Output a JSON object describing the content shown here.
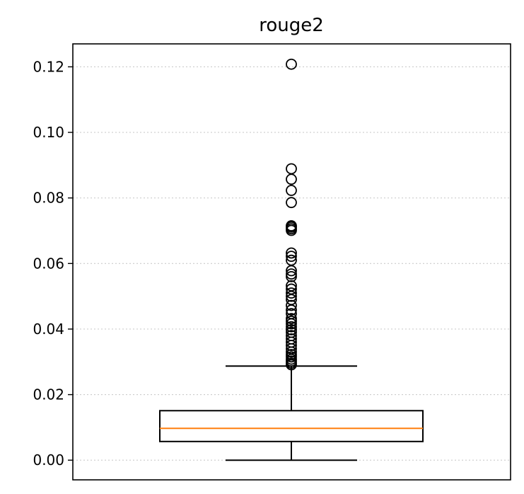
{
  "chart_data": {
    "type": "box",
    "title": "rouge2",
    "xlabel": "",
    "ylabel": "",
    "ylim": [
      -0.006,
      0.127
    ],
    "yticks": [
      0.0,
      0.02,
      0.04,
      0.06,
      0.08,
      0.1,
      0.12
    ],
    "ytick_labels": [
      "0.00",
      "0.02",
      "0.04",
      "0.06",
      "0.08",
      "0.10",
      "0.12"
    ],
    "grid": "y, dotted",
    "series": [
      {
        "whisker_low": 0.0,
        "q1": 0.0057,
        "median": 0.0097,
        "q3": 0.0151,
        "whisker_high": 0.0287,
        "outliers": [
          0.1208,
          0.0889,
          0.0857,
          0.0823,
          0.0786,
          0.0715,
          0.0711,
          0.0706,
          0.0701,
          0.0632,
          0.0622,
          0.061,
          0.0578,
          0.0568,
          0.056,
          0.0532,
          0.0522,
          0.051,
          0.05,
          0.049,
          0.0472,
          0.0458,
          0.0447,
          0.0432,
          0.0424,
          0.0416,
          0.0407,
          0.0398,
          0.039,
          0.038,
          0.037,
          0.036,
          0.035,
          0.034,
          0.033,
          0.0322,
          0.0315,
          0.0308,
          0.0302,
          0.0296,
          0.0291
        ]
      }
    ],
    "colors": {
      "box": "#000000",
      "median": "#ff7f0e",
      "grid": "#cccccc",
      "outlier_edge": "#000000"
    }
  }
}
